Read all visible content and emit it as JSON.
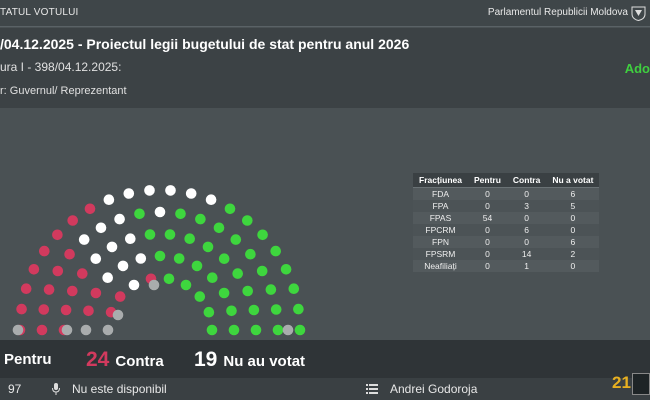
{
  "topbar": {
    "left_text": "TATUL VOTULUI",
    "right_text": "Parlamentul Republicii Moldova",
    "crest": "coat-of-arms-icon"
  },
  "header": {
    "title": "/04.12.2025 - Proiectul legii bugetului de stat pentru anul 2026",
    "reading": "ura I - 398/04.12.2025:",
    "status": "Ado",
    "author": "r: Guvernul/ Reprezentant"
  },
  "table": {
    "headers": [
      "Fracțiunea",
      "Pentru",
      "Contra",
      "Nu a votat"
    ],
    "rows": [
      [
        "FDA",
        "0",
        "0",
        "6"
      ],
      [
        "FPA",
        "0",
        "3",
        "5"
      ],
      [
        "FPAS",
        "54",
        "0",
        "0"
      ],
      [
        "FPCRM",
        "0",
        "6",
        "0"
      ],
      [
        "FPN",
        "0",
        "0",
        "6"
      ],
      [
        "FPSRM",
        "0",
        "14",
        "2"
      ],
      [
        "Neafiliați",
        "0",
        "1",
        "0"
      ]
    ]
  },
  "results": {
    "pentru_label": "Pentru",
    "contra_num": "24",
    "contra_label": "Contra",
    "nevotat_num": "19",
    "nevotat_label": "Nu au votat"
  },
  "footer": {
    "left_num": "97",
    "mic_status": "Nu este disponibil",
    "speaker": "Andrei Godoroja",
    "clock": "21"
  },
  "colors": {
    "green": "#3ed63e",
    "red": "#d23a5e",
    "grey": "#a9acad",
    "white": "#ffffff"
  }
}
